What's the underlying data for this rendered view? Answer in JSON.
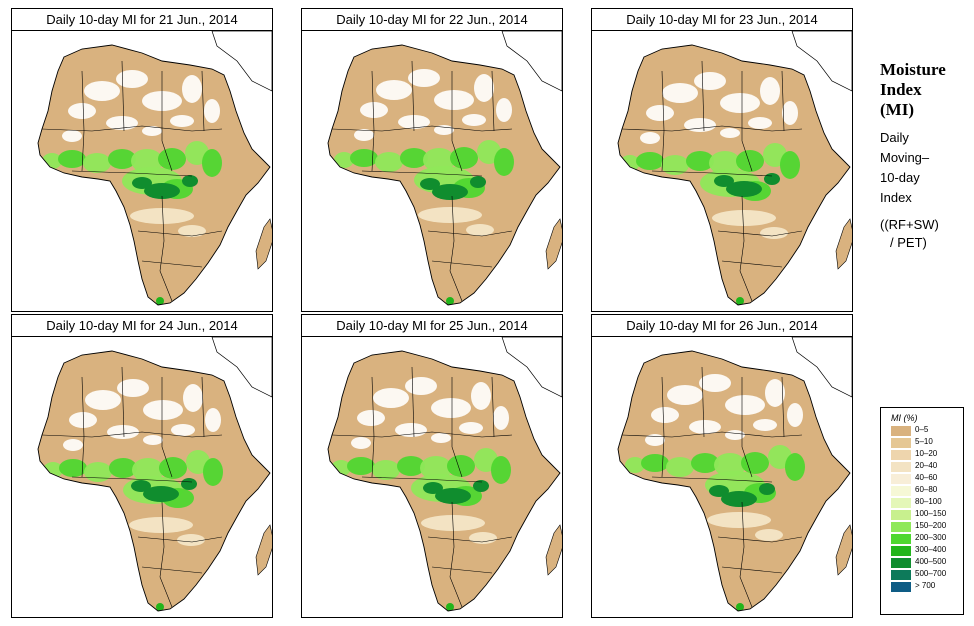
{
  "panels": [
    {
      "title": "Daily 10-day MI for  21 Jun., 2014"
    },
    {
      "title": "Daily 10-day MI for  22 Jun., 2014"
    },
    {
      "title": "Daily 10-day MI for  23 Jun., 2014"
    },
    {
      "title": "Daily 10-day MI for  24 Jun., 2014"
    },
    {
      "title": "Daily 10-day MI for  25 Jun., 2014"
    },
    {
      "title": "Daily 10-day MI for  26 Jun., 2014"
    }
  ],
  "side": {
    "title_line1": "Moisture",
    "title_line2": "Index",
    "title_line3": "(MI)",
    "desc_line1": "Daily",
    "desc_line2": "Moving–",
    "desc_line3": "10-day",
    "desc_line4": "Index",
    "formula_line1": "((RF+SW)",
    "formula_line2": "/ PET)"
  },
  "legend": {
    "title": "MI (%)",
    "entries": [
      {
        "label": "0–5",
        "color": "#d9b27f"
      },
      {
        "label": "5–10",
        "color": "#e5c794"
      },
      {
        "label": "10–20",
        "color": "#eed5ad"
      },
      {
        "label": "20–40",
        "color": "#f3e3c3"
      },
      {
        "label": "40–60",
        "color": "#f8eed8"
      },
      {
        "label": "60–80",
        "color": "#f6f8d6"
      },
      {
        "label": "80–100",
        "color": "#e4f7b8"
      },
      {
        "label": "100–150",
        "color": "#c8f08e"
      },
      {
        "label": "150–200",
        "color": "#8fe85a"
      },
      {
        "label": "200–300",
        "color": "#4fd730"
      },
      {
        "label": "300–400",
        "color": "#22b51b"
      },
      {
        "label": "400–500",
        "color": "#108d2e"
      },
      {
        "label": "500–700",
        "color": "#0d7a5a"
      },
      {
        "label": "> 700",
        "color": "#0e5c85"
      }
    ]
  }
}
